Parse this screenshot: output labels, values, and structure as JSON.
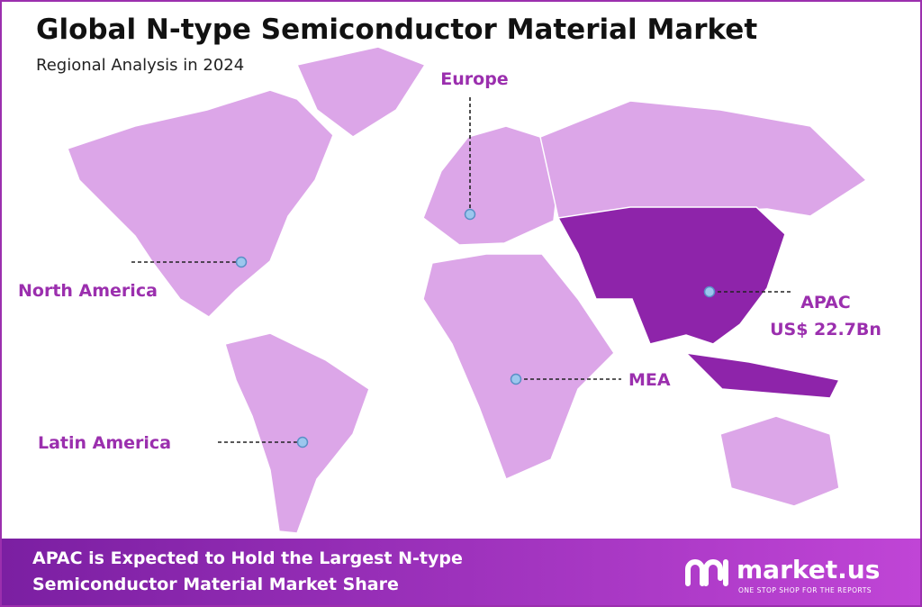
{
  "header": {
    "title": "Global N-type Semiconductor Material Market",
    "subtitle": "Regional Analysis in 2024"
  },
  "regions": [
    {
      "label": "Europe"
    },
    {
      "label": "North America"
    },
    {
      "label": "Latin America"
    },
    {
      "label": "MEA"
    },
    {
      "label": "APAC",
      "value": "US$ 22.7Bn"
    }
  ],
  "footer": {
    "lines": [
      "APAC is Expected to Hold the Largest N-type",
      "Semiconductor Material Market Share"
    ],
    "brand": "market.us",
    "tagline": "ONE STOP SHOP FOR THE REPORTS"
  }
}
